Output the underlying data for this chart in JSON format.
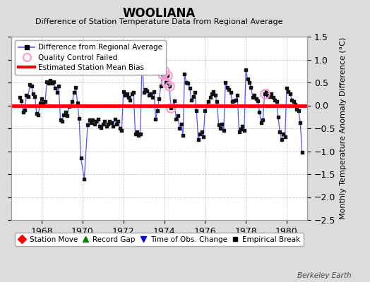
{
  "title": "WOOLIANA",
  "subtitle": "Difference of Station Temperature Data from Regional Average",
  "ylabel": "Monthly Temperature Anomaly Difference (°C)",
  "bias_value": 0.0,
  "ylim": [
    -2.5,
    1.5
  ],
  "xlim": [
    1966.5,
    1981.0
  ],
  "xticks": [
    1968,
    1970,
    1972,
    1974,
    1976,
    1978,
    1980
  ],
  "yticks": [
    -2.5,
    -2.0,
    -1.5,
    -1.0,
    -0.5,
    0.0,
    0.5,
    1.0,
    1.5
  ],
  "background_color": "#dcdcdc",
  "plot_bg_color": "#ffffff",
  "grid_color": "#c8c8c8",
  "line_color": "#5555ff",
  "marker_color": "#111111",
  "bias_color": "#ff0000",
  "watermark": "Berkeley Earth",
  "time_series": [
    [
      1966.917,
      0.18
    ],
    [
      1967.0,
      0.1
    ],
    [
      1967.083,
      -0.15
    ],
    [
      1967.167,
      -0.1
    ],
    [
      1967.25,
      0.22
    ],
    [
      1967.333,
      0.2
    ],
    [
      1967.417,
      0.45
    ],
    [
      1967.5,
      0.42
    ],
    [
      1967.583,
      0.25
    ],
    [
      1967.667,
      0.2
    ],
    [
      1967.75,
      -0.18
    ],
    [
      1967.833,
      -0.2
    ],
    [
      1967.917,
      0.05
    ],
    [
      1968.0,
      0.15
    ],
    [
      1968.083,
      0.05
    ],
    [
      1968.167,
      0.08
    ],
    [
      1968.25,
      0.52
    ],
    [
      1968.333,
      0.48
    ],
    [
      1968.417,
      0.55
    ],
    [
      1968.5,
      0.48
    ],
    [
      1968.583,
      0.52
    ],
    [
      1968.667,
      0.38
    ],
    [
      1968.75,
      0.28
    ],
    [
      1968.833,
      0.42
    ],
    [
      1968.917,
      -0.32
    ],
    [
      1969.0,
      -0.35
    ],
    [
      1969.083,
      -0.2
    ],
    [
      1969.167,
      -0.15
    ],
    [
      1969.25,
      -0.22
    ],
    [
      1969.333,
      -0.02
    ],
    [
      1969.417,
      0.0
    ],
    [
      1969.5,
      0.08
    ],
    [
      1969.583,
      0.28
    ],
    [
      1969.667,
      0.4
    ],
    [
      1969.75,
      0.05
    ],
    [
      1969.833,
      -0.28
    ],
    [
      1969.917,
      -1.15
    ],
    [
      1970.083,
      -1.6
    ],
    [
      1970.25,
      -0.42
    ],
    [
      1970.333,
      -0.32
    ],
    [
      1970.417,
      -0.38
    ],
    [
      1970.5,
      -0.32
    ],
    [
      1970.583,
      -0.4
    ],
    [
      1970.667,
      -0.35
    ],
    [
      1970.75,
      -0.3
    ],
    [
      1970.833,
      -0.45
    ],
    [
      1970.917,
      -0.48
    ],
    [
      1971.0,
      -0.4
    ],
    [
      1971.083,
      -0.35
    ],
    [
      1971.167,
      -0.45
    ],
    [
      1971.25,
      -0.4
    ],
    [
      1971.333,
      -0.35
    ],
    [
      1971.417,
      -0.38
    ],
    [
      1971.5,
      -0.45
    ],
    [
      1971.583,
      -0.3
    ],
    [
      1971.667,
      -0.4
    ],
    [
      1971.75,
      -0.35
    ],
    [
      1971.833,
      -0.5
    ],
    [
      1971.917,
      -0.55
    ],
    [
      1972.0,
      0.3
    ],
    [
      1972.083,
      0.22
    ],
    [
      1972.167,
      0.25
    ],
    [
      1972.25,
      0.18
    ],
    [
      1972.333,
      0.12
    ],
    [
      1972.417,
      0.25
    ],
    [
      1972.5,
      0.28
    ],
    [
      1972.583,
      -0.62
    ],
    [
      1972.667,
      -0.58
    ],
    [
      1972.75,
      -0.65
    ],
    [
      1972.833,
      -0.62
    ],
    [
      1972.917,
      1.05
    ],
    [
      1973.0,
      0.28
    ],
    [
      1973.083,
      0.35
    ],
    [
      1973.167,
      0.32
    ],
    [
      1973.25,
      0.22
    ],
    [
      1973.333,
      0.25
    ],
    [
      1973.417,
      0.18
    ],
    [
      1973.5,
      0.3
    ],
    [
      1973.583,
      -0.3
    ],
    [
      1973.667,
      -0.12
    ],
    [
      1973.75,
      0.15
    ],
    [
      1973.833,
      0.42
    ],
    [
      1973.917,
      0.68
    ],
    [
      1974.0,
      0.75
    ],
    [
      1974.083,
      0.5
    ],
    [
      1974.167,
      0.65
    ],
    [
      1974.25,
      0.42
    ],
    [
      1974.333,
      -0.05
    ],
    [
      1974.417,
      0.0
    ],
    [
      1974.5,
      0.1
    ],
    [
      1974.583,
      -0.3
    ],
    [
      1974.667,
      -0.22
    ],
    [
      1974.75,
      -0.5
    ],
    [
      1974.833,
      -0.4
    ],
    [
      1974.917,
      -0.65
    ],
    [
      1975.0,
      0.68
    ],
    [
      1975.083,
      0.5
    ],
    [
      1975.167,
      0.48
    ],
    [
      1975.25,
      0.38
    ],
    [
      1975.333,
      0.12
    ],
    [
      1975.417,
      0.2
    ],
    [
      1975.5,
      0.28
    ],
    [
      1975.583,
      -0.12
    ],
    [
      1975.667,
      -0.75
    ],
    [
      1975.75,
      -0.62
    ],
    [
      1975.833,
      -0.58
    ],
    [
      1975.917,
      -0.68
    ],
    [
      1976.0,
      -0.12
    ],
    [
      1976.083,
      0.0
    ],
    [
      1976.167,
      0.08
    ],
    [
      1976.25,
      0.18
    ],
    [
      1976.333,
      0.25
    ],
    [
      1976.417,
      0.3
    ],
    [
      1976.5,
      0.22
    ],
    [
      1976.583,
      0.08
    ],
    [
      1976.667,
      -0.42
    ],
    [
      1976.75,
      -0.5
    ],
    [
      1976.833,
      -0.4
    ],
    [
      1976.917,
      -0.55
    ],
    [
      1977.0,
      0.5
    ],
    [
      1977.083,
      0.4
    ],
    [
      1977.167,
      0.35
    ],
    [
      1977.25,
      0.28
    ],
    [
      1977.333,
      0.08
    ],
    [
      1977.417,
      0.1
    ],
    [
      1977.5,
      0.12
    ],
    [
      1977.583,
      0.22
    ],
    [
      1977.667,
      -0.58
    ],
    [
      1977.75,
      -0.52
    ],
    [
      1977.833,
      -0.45
    ],
    [
      1977.917,
      -0.55
    ],
    [
      1978.0,
      0.78
    ],
    [
      1978.083,
      0.58
    ],
    [
      1978.167,
      0.5
    ],
    [
      1978.25,
      0.4
    ],
    [
      1978.333,
      0.18
    ],
    [
      1978.417,
      0.22
    ],
    [
      1978.5,
      0.15
    ],
    [
      1978.583,
      0.1
    ],
    [
      1978.667,
      -0.15
    ],
    [
      1978.75,
      -0.38
    ],
    [
      1978.833,
      -0.32
    ],
    [
      1978.917,
      0.25
    ],
    [
      1979.0,
      0.32
    ],
    [
      1979.083,
      0.22
    ],
    [
      1979.167,
      0.2
    ],
    [
      1979.25,
      0.25
    ],
    [
      1979.333,
      0.18
    ],
    [
      1979.417,
      0.12
    ],
    [
      1979.5,
      0.08
    ],
    [
      1979.583,
      -0.25
    ],
    [
      1979.667,
      -0.58
    ],
    [
      1979.75,
      -0.75
    ],
    [
      1979.833,
      -0.62
    ],
    [
      1979.917,
      -0.68
    ],
    [
      1980.0,
      0.38
    ],
    [
      1980.083,
      0.3
    ],
    [
      1980.167,
      0.25
    ],
    [
      1980.25,
      0.12
    ],
    [
      1980.333,
      0.08
    ],
    [
      1980.417,
      0.02
    ],
    [
      1980.5,
      -0.08
    ],
    [
      1980.583,
      -0.12
    ],
    [
      1980.667,
      -0.38
    ],
    [
      1980.75,
      -1.02
    ]
  ],
  "qc_failed_x": [
    1973.917,
    1974.0,
    1974.083,
    1974.167,
    1974.25,
    1974.333,
    1978.917
  ],
  "qc_failed_y": [
    0.68,
    0.75,
    0.5,
    0.65,
    0.42,
    -0.05,
    0.25
  ],
  "legend1_labels": [
    "Difference from Regional Average",
    "Quality Control Failed",
    "Estimated Station Mean Bias"
  ],
  "legend2_labels": [
    "Station Move",
    "Record Gap",
    "Time of Obs. Change",
    "Empirical Break"
  ]
}
